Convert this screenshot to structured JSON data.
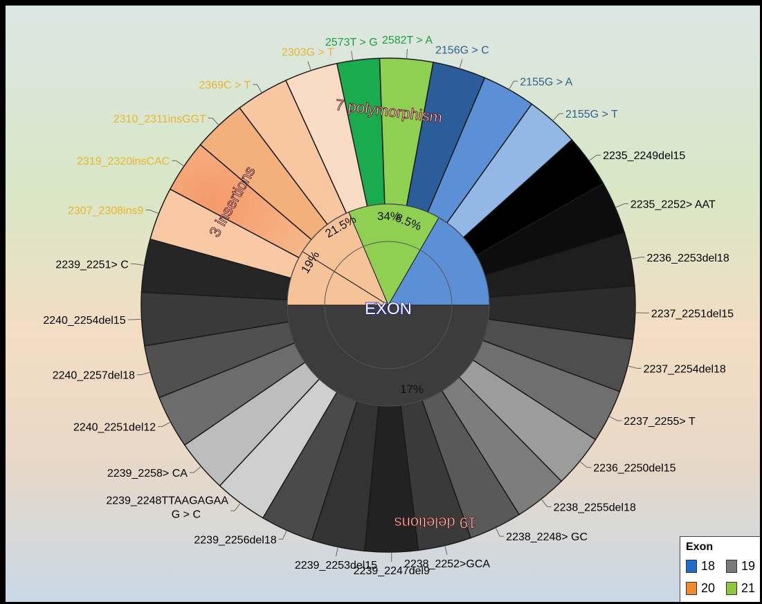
{
  "chart_data": {
    "type": "sunburst",
    "center_label": "EXON",
    "inner_ring": [
      {
        "exon": "18",
        "percent_label": "8.5%",
        "color": "#5b8fd6"
      },
      {
        "exon": "19",
        "percent_label": "17%",
        "color": "#3c3c3c"
      },
      {
        "exon": "20",
        "percent_label": "19%",
        "color": "#f6c398"
      },
      {
        "exon": "20",
        "percent_label": "21.5%",
        "color": "#f6c398"
      },
      {
        "exon": "21",
        "percent_label": "34%",
        "color": "#8fd052"
      }
    ],
    "group_labels": [
      "7 polymorphism",
      "3 insertions",
      "19 deletions"
    ],
    "mutations": [
      {
        "label": "2573T > G",
        "exon": "21",
        "color": "#1aab4e",
        "label_color": "#1e9e3e"
      },
      {
        "label": "2582T > A",
        "exon": "21",
        "color": "#8fd052",
        "label_color": "#1e9e3e"
      },
      {
        "label": "2156G > C",
        "exon": "18",
        "color": "#2a5d9a",
        "label_color": "#2f5f8a"
      },
      {
        "label": "2155G > A",
        "exon": "18",
        "color": "#5b8fd6",
        "label_color": "#2f5f8a"
      },
      {
        "label": "2155G > T",
        "exon": "18",
        "color": "#93b8e6",
        "label_color": "#2f5f8a"
      },
      {
        "label": "2235_2249del15",
        "exon": "19",
        "color": "#000000",
        "label_color": "#000000"
      },
      {
        "label": "2235_2252> AAT",
        "exon": "19",
        "color": "#0d0d0d",
        "label_color": "#000000"
      },
      {
        "label": "2236_2253del18",
        "exon": "19",
        "color": "#1e1e1e",
        "label_color": "#000000"
      },
      {
        "label": "2237_2251del15",
        "exon": "19",
        "color": "#2c2c2c",
        "label_color": "#000000"
      },
      {
        "label": "2237_2254del18",
        "exon": "19",
        "color": "#4e4e4e",
        "label_color": "#000000"
      },
      {
        "label": "2237_2255> T",
        "exon": "19",
        "color": "#6f6f6f",
        "label_color": "#000000"
      },
      {
        "label": "2236_2250del15",
        "exon": "19",
        "color": "#9c9c9c",
        "label_color": "#000000"
      },
      {
        "label": "2238_2255del18",
        "exon": "19",
        "color": "#7d7d7d",
        "label_color": "#000000"
      },
      {
        "label": "2238_2248> GC",
        "exon": "19",
        "color": "#595959",
        "label_color": "#000000"
      },
      {
        "label": "2238_2252>GCA",
        "exon": "19",
        "color": "#3a3a3a",
        "label_color": "#000000"
      },
      {
        "label": "2239_2247del9",
        "exon": "19",
        "color": "#222222",
        "label_color": "#000000"
      },
      {
        "label": "2239_2253del15",
        "exon": "19",
        "color": "#333333",
        "label_color": "#000000"
      },
      {
        "label": "2239_2256del18",
        "exon": "19",
        "color": "#4a4a4a",
        "label_color": "#000000"
      },
      {
        "label": "2239_2248TTAAGAGAA\nG > C",
        "exon": "19",
        "color": "#cfcfcf",
        "label_color": "#000000"
      },
      {
        "label": "2239_2258> CA",
        "exon": "19",
        "color": "#bdbdbd",
        "label_color": "#000000"
      },
      {
        "label": "2240_2251del12",
        "exon": "19",
        "color": "#6c6c6c",
        "label_color": "#000000"
      },
      {
        "label": "2240_2257del18",
        "exon": "19",
        "color": "#505050",
        "label_color": "#000000"
      },
      {
        "label": "2240_2254del15",
        "exon": "19",
        "color": "#3a3a3a",
        "label_color": "#000000"
      },
      {
        "label": "2239_2251> C",
        "exon": "19",
        "color": "#262626",
        "label_color": "#000000"
      },
      {
        "label": "2307_2308ins9",
        "exon": "20",
        "color": "#f8c9a4",
        "label_color": "#e8b52e"
      },
      {
        "label": "2319_2320insCAC",
        "exon": "20",
        "color": "#f28a5e",
        "label_color": "#e8b52e"
      },
      {
        "label": "2310_2311insGGT",
        "exon": "20",
        "color": "#f4b07a",
        "label_color": "#e8b52e"
      },
      {
        "label": "2369C > T",
        "exon": "20",
        "color": "#f8c6a0",
        "label_color": "#e8b52e"
      },
      {
        "label": "2303G > T",
        "exon": "20",
        "color": "#fadcc4",
        "label_color": "#e8b52e"
      }
    ]
  },
  "legend": {
    "title": "Exon",
    "items": [
      {
        "label": "18",
        "color": "#1f6fc7"
      },
      {
        "label": "19",
        "color": "#7a7a7a"
      },
      {
        "label": "20",
        "color": "#f08a2e"
      },
      {
        "label": "21",
        "color": "#8ec63f"
      }
    ]
  }
}
